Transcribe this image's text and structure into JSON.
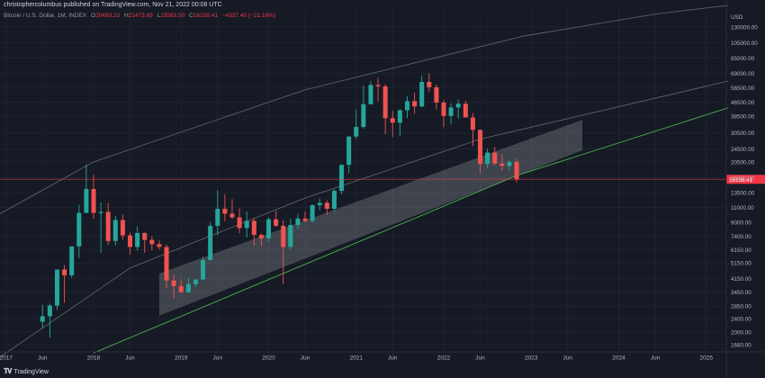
{
  "header": {
    "publisher": "christophercolumbus published on TradingView.com, Nov 21, 2022 00:08 UTC",
    "symbol": "Bitcoin / U.S. Dollar, 1M, INDEX",
    "open_label": "O",
    "open": "20493.23",
    "high_label": "H",
    "high": "21473.69",
    "low_label": "L",
    "low": "15563.50",
    "close_label": "C",
    "close": "16158.41",
    "change": "−4337.40 (−21.16%)"
  },
  "brand": {
    "name": "TradingView",
    "icon": "tradingview-logo-icon"
  },
  "colors": {
    "background": "#161a25",
    "up": "#26a69a",
    "down": "#ef5350",
    "support_line": "#4caf50",
    "channel_line": "#5d606b",
    "price_line": "#f23645",
    "text": "#b2b5be"
  },
  "chart_data": {
    "type": "candlestick",
    "title": "Bitcoin / U.S. Dollar, 1M, INDEX",
    "yscale": "log",
    "ylim": [
      1500,
      160000
    ],
    "y_axis_label": "USD",
    "y_ticks": [
      "1680.00",
      "2000.00",
      "2400.00",
      "2850.00",
      "3450.00",
      "4150.00",
      "5150.00",
      "6150.00",
      "7400.00",
      "9000.00",
      "11000.00",
      "13500.00",
      "16500.00",
      "20500.00",
      "24500.00",
      "30500.00",
      "38500.00",
      "46500.00",
      "56500.00",
      "69000.00",
      "85000.00",
      "105000.00",
      "130000.00"
    ],
    "x_ticks": [
      "2017",
      "Jun",
      "2018",
      "Jun",
      "2019",
      "Jun",
      "2020",
      "Jun",
      "2021",
      "Jun",
      "2022",
      "Jun",
      "2023",
      "Jun",
      "2024",
      "Jun",
      "2025"
    ],
    "last_price_label": "16158.41",
    "last_price": 16158.41,
    "candles": [
      {
        "t": "2017-06",
        "o": 2300,
        "h": 2900,
        "l": 2100,
        "c": 2480
      },
      {
        "t": "2017-07",
        "o": 2480,
        "h": 2950,
        "l": 1850,
        "c": 2870
      },
      {
        "t": "2017-08",
        "o": 2870,
        "h": 4700,
        "l": 2700,
        "c": 4700
      },
      {
        "t": "2017-09",
        "o": 4700,
        "h": 5000,
        "l": 2980,
        "c": 4340
      },
      {
        "t": "2017-10",
        "o": 4340,
        "h": 6400,
        "l": 4200,
        "c": 6450
      },
      {
        "t": "2017-11",
        "o": 6450,
        "h": 11400,
        "l": 5500,
        "c": 10200
      },
      {
        "t": "2017-12",
        "o": 10200,
        "h": 19800,
        "l": 10200,
        "c": 14150
      },
      {
        "t": "2018-01",
        "o": 14150,
        "h": 17200,
        "l": 9400,
        "c": 10200
      },
      {
        "t": "2018-02",
        "o": 10200,
        "h": 11800,
        "l": 5900,
        "c": 10350
      },
      {
        "t": "2018-03",
        "o": 10350,
        "h": 11700,
        "l": 6600,
        "c": 6950
      },
      {
        "t": "2018-04",
        "o": 6950,
        "h": 9800,
        "l": 6500,
        "c": 9250
      },
      {
        "t": "2018-05",
        "o": 9250,
        "h": 10000,
        "l": 7100,
        "c": 7500
      },
      {
        "t": "2018-06",
        "o": 7500,
        "h": 7800,
        "l": 5750,
        "c": 6400
      },
      {
        "t": "2018-07",
        "o": 6400,
        "h": 8500,
        "l": 6100,
        "c": 7750
      },
      {
        "t": "2018-08",
        "o": 7750,
        "h": 7800,
        "l": 5900,
        "c": 7050
      },
      {
        "t": "2018-09",
        "o": 7050,
        "h": 7400,
        "l": 6100,
        "c": 6650
      },
      {
        "t": "2018-10",
        "o": 6650,
        "h": 7000,
        "l": 6200,
        "c": 6400
      },
      {
        "t": "2018-11",
        "o": 6400,
        "h": 6600,
        "l": 3650,
        "c": 4050
      },
      {
        "t": "2018-12",
        "o": 4050,
        "h": 4400,
        "l": 3150,
        "c": 3750
      },
      {
        "t": "2019-01",
        "o": 3750,
        "h": 4100,
        "l": 3400,
        "c": 3450
      },
      {
        "t": "2019-02",
        "o": 3450,
        "h": 4200,
        "l": 3400,
        "c": 3850
      },
      {
        "t": "2019-03",
        "o": 3850,
        "h": 4100,
        "l": 3700,
        "c": 4100
      },
      {
        "t": "2019-04",
        "o": 4100,
        "h": 5600,
        "l": 4050,
        "c": 5350
      },
      {
        "t": "2019-05",
        "o": 5350,
        "h": 9000,
        "l": 5300,
        "c": 8550
      },
      {
        "t": "2019-06",
        "o": 8550,
        "h": 13900,
        "l": 7500,
        "c": 10800
      },
      {
        "t": "2019-07",
        "o": 10800,
        "h": 13200,
        "l": 9100,
        "c": 10100
      },
      {
        "t": "2019-08",
        "o": 10100,
        "h": 12300,
        "l": 9400,
        "c": 9600
      },
      {
        "t": "2019-09",
        "o": 9600,
        "h": 10900,
        "l": 7700,
        "c": 8300
      },
      {
        "t": "2019-10",
        "o": 8300,
        "h": 10400,
        "l": 7300,
        "c": 9150
      },
      {
        "t": "2019-11",
        "o": 9150,
        "h": 9500,
        "l": 6500,
        "c": 7550
      },
      {
        "t": "2019-12",
        "o": 7550,
        "h": 7700,
        "l": 6450,
        "c": 7200
      },
      {
        "t": "2020-01",
        "o": 7200,
        "h": 9600,
        "l": 6900,
        "c": 9350
      },
      {
        "t": "2020-02",
        "o": 9350,
        "h": 10500,
        "l": 8450,
        "c": 8550
      },
      {
        "t": "2020-03",
        "o": 8550,
        "h": 9200,
        "l": 3850,
        "c": 6400
      },
      {
        "t": "2020-04",
        "o": 6400,
        "h": 9450,
        "l": 6150,
        "c": 8650
      },
      {
        "t": "2020-05",
        "o": 8650,
        "h": 10100,
        "l": 8150,
        "c": 9450
      },
      {
        "t": "2020-06",
        "o": 9450,
        "h": 10400,
        "l": 8950,
        "c": 9150
      },
      {
        "t": "2020-07",
        "o": 9150,
        "h": 11450,
        "l": 8950,
        "c": 11350
      },
      {
        "t": "2020-08",
        "o": 11350,
        "h": 12450,
        "l": 10550,
        "c": 11700
      },
      {
        "t": "2020-09",
        "o": 11700,
        "h": 12100,
        "l": 9900,
        "c": 10800
      },
      {
        "t": "2020-10",
        "o": 10800,
        "h": 14100,
        "l": 10400,
        "c": 13800
      },
      {
        "t": "2020-11",
        "o": 13800,
        "h": 19900,
        "l": 13200,
        "c": 19700
      },
      {
        "t": "2020-12",
        "o": 19700,
        "h": 29300,
        "l": 17600,
        "c": 29000
      },
      {
        "t": "2021-01",
        "o": 29000,
        "h": 41950,
        "l": 28100,
        "c": 33100
      },
      {
        "t": "2021-02",
        "o": 33100,
        "h": 58350,
        "l": 32300,
        "c": 45200
      },
      {
        "t": "2021-03",
        "o": 45200,
        "h": 61800,
        "l": 44950,
        "c": 58800
      },
      {
        "t": "2021-04",
        "o": 58800,
        "h": 64850,
        "l": 47000,
        "c": 57700
      },
      {
        "t": "2021-05",
        "o": 57700,
        "h": 59500,
        "l": 30000,
        "c": 37300
      },
      {
        "t": "2021-06",
        "o": 37300,
        "h": 41300,
        "l": 28800,
        "c": 35050
      },
      {
        "t": "2021-07",
        "o": 35050,
        "h": 42300,
        "l": 29300,
        "c": 41600
      },
      {
        "t": "2021-08",
        "o": 41600,
        "h": 50500,
        "l": 37400,
        "c": 47100
      },
      {
        "t": "2021-09",
        "o": 47100,
        "h": 52900,
        "l": 39600,
        "c": 43800
      },
      {
        "t": "2021-10",
        "o": 43800,
        "h": 67000,
        "l": 43300,
        "c": 61300
      },
      {
        "t": "2021-11",
        "o": 61300,
        "h": 69000,
        "l": 53300,
        "c": 57000
      },
      {
        "t": "2021-12",
        "o": 57000,
        "h": 59100,
        "l": 42000,
        "c": 46200
      },
      {
        "t": "2022-01",
        "o": 46200,
        "h": 47950,
        "l": 32950,
        "c": 38500
      },
      {
        "t": "2022-02",
        "o": 38500,
        "h": 45800,
        "l": 34300,
        "c": 43200
      },
      {
        "t": "2022-03",
        "o": 43200,
        "h": 48200,
        "l": 37200,
        "c": 45500
      },
      {
        "t": "2022-04",
        "o": 45500,
        "h": 47450,
        "l": 37700,
        "c": 37700
      },
      {
        "t": "2022-05",
        "o": 37700,
        "h": 40000,
        "l": 25400,
        "c": 31800
      },
      {
        "t": "2022-06",
        "o": 31800,
        "h": 31900,
        "l": 17600,
        "c": 19950
      },
      {
        "t": "2022-07",
        "o": 19950,
        "h": 24650,
        "l": 18800,
        "c": 23300
      },
      {
        "t": "2022-08",
        "o": 23300,
        "h": 25200,
        "l": 19550,
        "c": 20050
      },
      {
        "t": "2022-09",
        "o": 20050,
        "h": 22800,
        "l": 18150,
        "c": 19400
      },
      {
        "t": "2022-10",
        "o": 19400,
        "h": 20950,
        "l": 18200,
        "c": 20500
      },
      {
        "t": "2022-11",
        "o": 20493.23,
        "h": 21473.69,
        "l": 15563.5,
        "c": 16158.41
      }
    ],
    "support_line": [
      {
        "t": "2018-01",
        "p": 1500
      },
      {
        "t": "2022-11",
        "p": 17000
      },
      {
        "t": "2025-04",
        "p": 43000
      }
    ],
    "channel_upper_line": [
      {
        "t": "2016-12",
        "p": 10000
      },
      {
        "t": "2018-01",
        "p": 20500
      },
      {
        "t": "2020-06",
        "p": 55000
      },
      {
        "t": "2022-12",
        "p": 115000
      },
      {
        "t": "2024-06",
        "p": 155000
      },
      {
        "t": "2025-04",
        "p": 175000
      }
    ],
    "channel_lower_line": [
      {
        "t": "2016-12",
        "p": 1400
      },
      {
        "t": "2018-06",
        "p": 4800
      },
      {
        "t": "2020-06",
        "p": 12500
      },
      {
        "t": "2022-06",
        "p": 28000
      },
      {
        "t": "2025-04",
        "p": 62000
      }
    ],
    "shaded_band": {
      "upper": [
        {
          "t": "2018-10",
          "p": 4450
        },
        {
          "t": "2023-08",
          "p": 36500
        }
      ],
      "lower": [
        {
          "t": "2018-10",
          "p": 2500
        },
        {
          "t": "2023-08",
          "p": 24000
        }
      ]
    }
  }
}
